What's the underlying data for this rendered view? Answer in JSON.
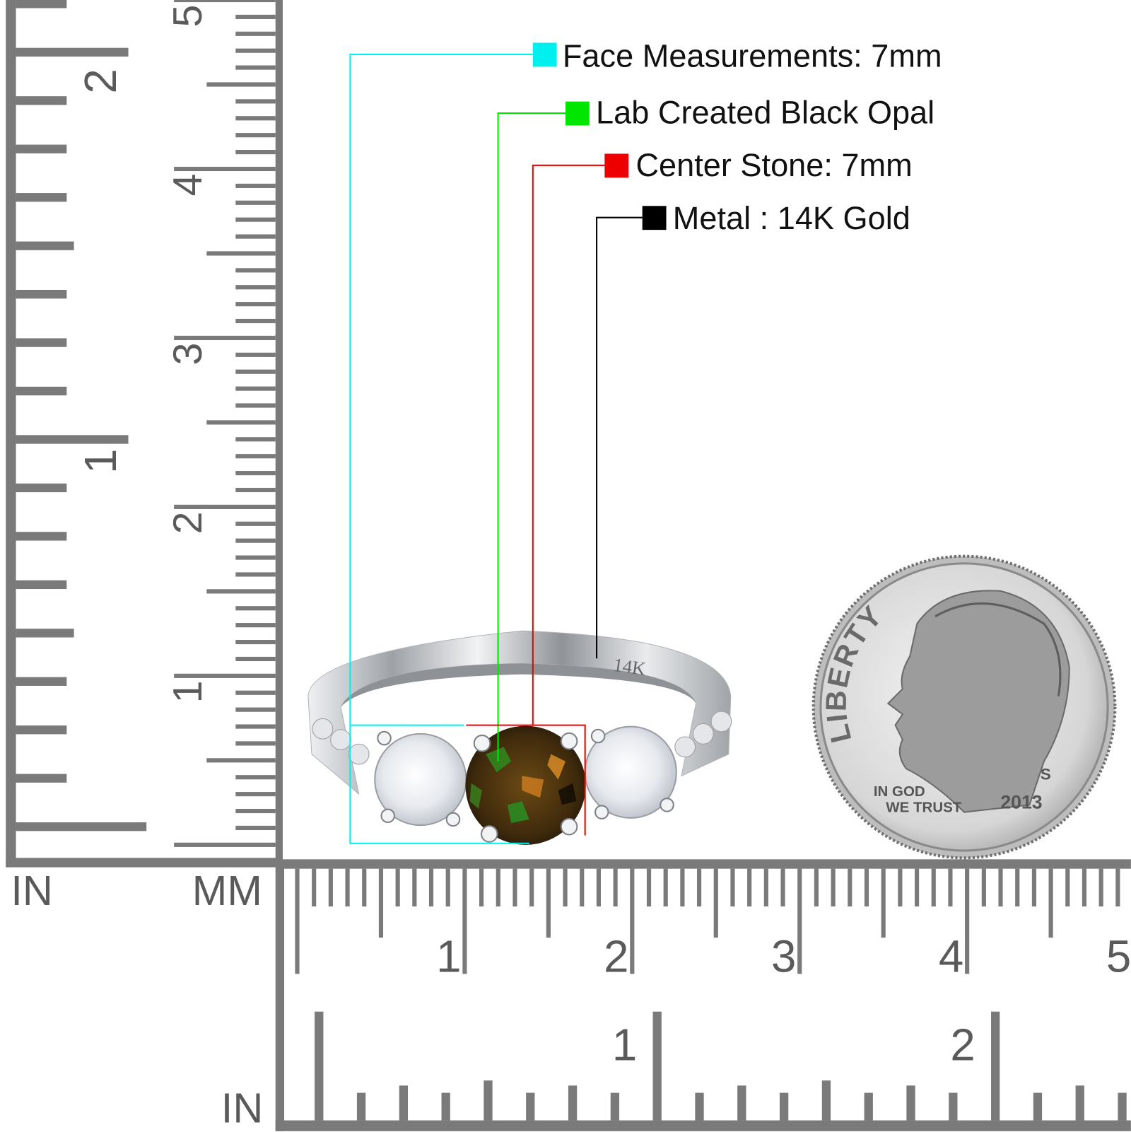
{
  "legend": [
    {
      "label": "Face Measurements: 7mm",
      "color": "#00f0f0"
    },
    {
      "label": "Lab Created Black Opal",
      "color": "#00e600"
    },
    {
      "label": "Center Stone: 7mm",
      "color": "#ee0000"
    },
    {
      "label": "Metal : 14K Gold",
      "color": "#000000"
    }
  ],
  "ring": {
    "stamp": "14K",
    "metal_color": "#c9cbce",
    "stone_color": "#5a3a12"
  },
  "coin": {
    "top_text": "LIBERTY",
    "motto_line1": "IN GOD",
    "motto_line2": "WE TRUST",
    "year": "2013",
    "mint_mark": "S"
  },
  "left_ruler": {
    "inch_label": "IN",
    "mm_label": "MM",
    "inch_numbers": [
      "1",
      "2"
    ],
    "cm_numbers": [
      "1",
      "2",
      "3",
      "4",
      "5"
    ]
  },
  "bottom_ruler": {
    "inch_label": "IN",
    "cm_numbers": [
      "1",
      "2",
      "3",
      "4",
      "5"
    ],
    "inch_numbers": [
      "1",
      "2"
    ]
  },
  "colors": {
    "ruler": "#7a7a7a",
    "ruler_text": "#5a5a5a"
  }
}
